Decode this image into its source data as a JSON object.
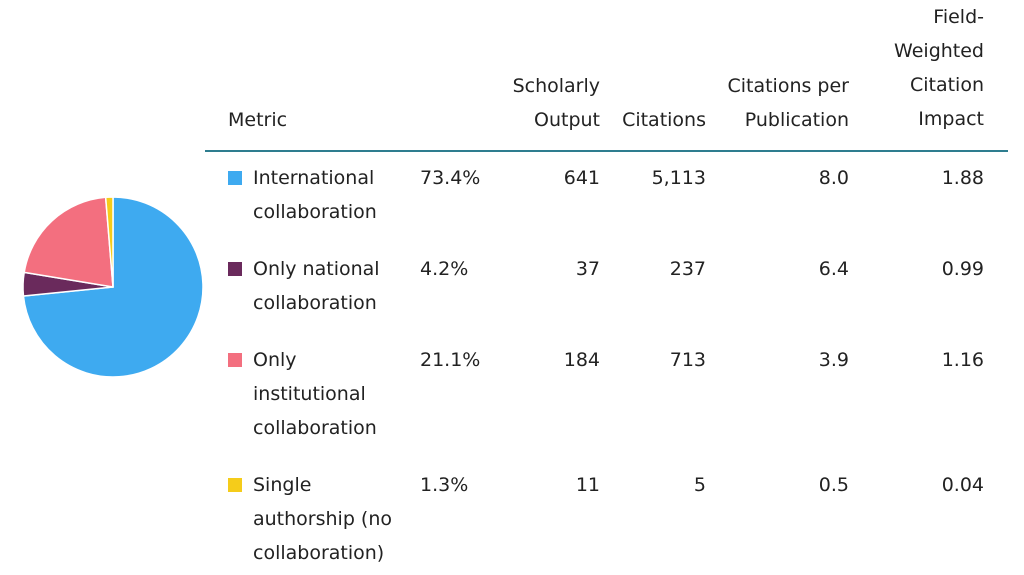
{
  "table": {
    "headers": {
      "metric": "Metric",
      "output": "Scholarly\nOutput",
      "citations": "Citations",
      "cpp": "Citations per\nPublication",
      "fwci": "Field-\nWeighted\nCitation\nImpact"
    },
    "rows": [
      {
        "label": "International\ncollaboration",
        "share": "73.4%",
        "output": "641",
        "citations": "5,113",
        "cpp": "8.0",
        "fwci": "1.88",
        "color": "#3eaaf0"
      },
      {
        "label": "Only national\ncollaboration",
        "share": "4.2%",
        "output": "37",
        "citations": "237",
        "cpp": "6.4",
        "fwci": "0.99",
        "color": "#6a2a5c"
      },
      {
        "label": "Only\ninstitutional\ncollaboration",
        "share": "21.1%",
        "output": "184",
        "citations": "713",
        "cpp": "3.9",
        "fwci": "1.16",
        "color": "#f36f7f"
      },
      {
        "label": "Single\nauthorship (no\ncollaboration)",
        "share": "1.3%",
        "output": "11",
        "citations": "5",
        "cpp": "0.5",
        "fwci": "0.04",
        "color": "#f5cc1a"
      }
    ]
  },
  "chart_data": {
    "type": "pie",
    "categories": [
      "International collaboration",
      "Only national collaboration",
      "Only institutional collaboration",
      "Single authorship (no collaboration)"
    ],
    "values": [
      73.4,
      4.2,
      21.1,
      1.3
    ],
    "colors": [
      "#3eaaf0",
      "#6a2a5c",
      "#f36f7f",
      "#f5cc1a"
    ]
  }
}
